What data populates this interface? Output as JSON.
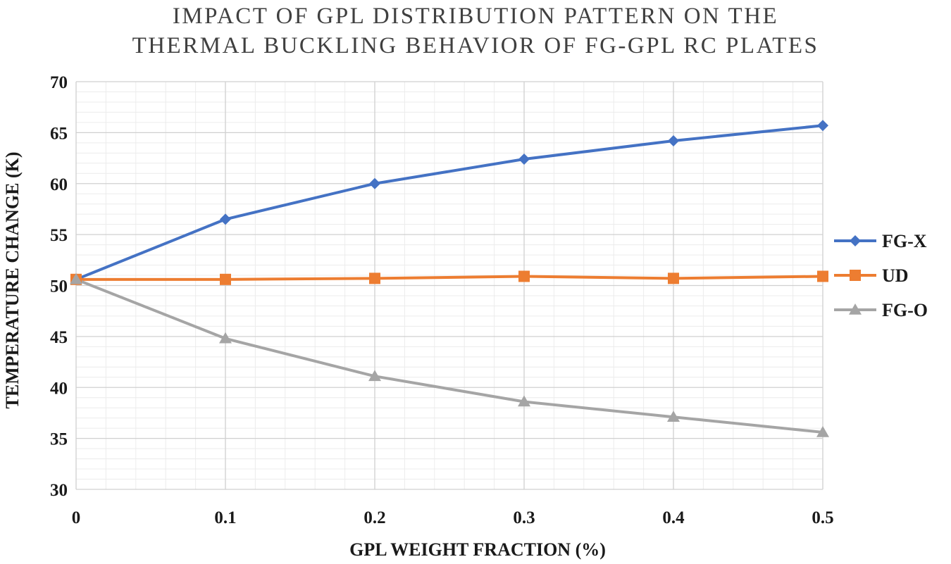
{
  "chart_data": {
    "type": "line",
    "title_line1": "IMPACT OF GPL DISTRIBUTION PATTERN ON THE",
    "title_line2": "THERMAL BUCKLING BEHAVIOR OF FG-GPL RC PLATES",
    "xlabel": "GPL WEIGHT FRACTION (%)",
    "ylabel": "TEMPERATURE CHANGE (K)",
    "x": [
      0,
      0.1,
      0.2,
      0.3,
      0.4,
      0.5
    ],
    "x_tick_labels": [
      "0",
      "0.1",
      "0.2",
      "0.3",
      "0.4",
      "0.5"
    ],
    "xlim": [
      0,
      0.5
    ],
    "ylim": [
      30,
      70
    ],
    "y_ticks": [
      30,
      35,
      40,
      45,
      50,
      55,
      60,
      65,
      70
    ],
    "grid": true,
    "legend_position": "right",
    "series": [
      {
        "name": "FG-X",
        "color": "#4472C4",
        "marker": "diamond",
        "values": [
          50.6,
          56.5,
          60.0,
          62.4,
          64.2,
          65.7
        ]
      },
      {
        "name": "UD",
        "color": "#ED7D31",
        "marker": "square",
        "values": [
          50.6,
          50.6,
          50.7,
          50.9,
          50.7,
          50.9
        ]
      },
      {
        "name": "FG-O",
        "color": "#A5A5A5",
        "marker": "triangle",
        "values": [
          50.6,
          44.8,
          41.1,
          38.6,
          37.1,
          35.6
        ]
      }
    ]
  }
}
